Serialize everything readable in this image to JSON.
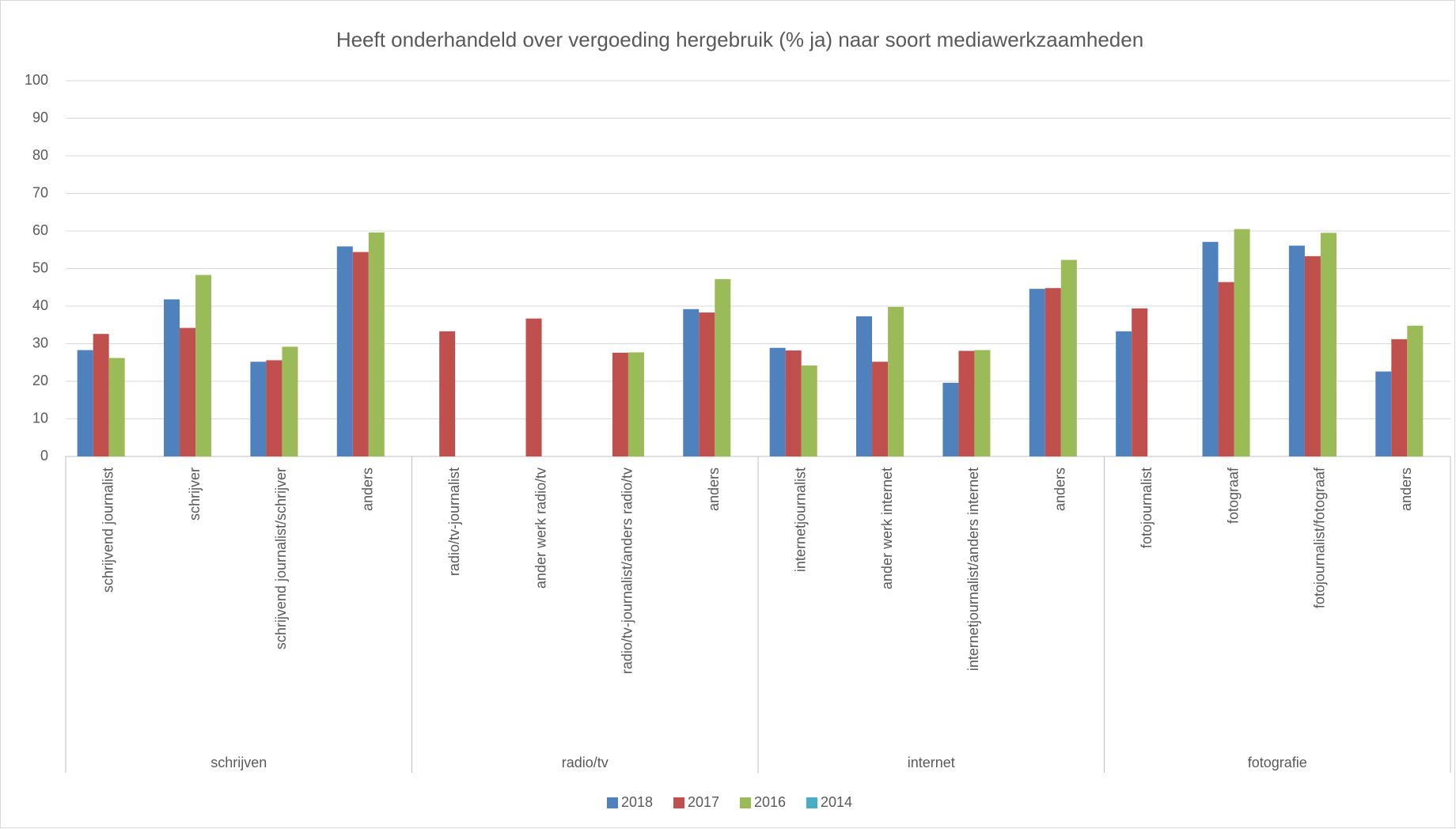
{
  "chart_data": {
    "type": "bar",
    "title": "Heeft onderhandeld over vergoeding hergebruik (% ja) naar soort mediawerkzaamheden",
    "categories": [
      "schrijvend journalist",
      "schrijver",
      "schrijvend journalist/schrijver",
      "anders",
      "radio/tv-journalist",
      "ander werk radio/tv",
      "radio/tv-journalist/anders radio/tv",
      "anders",
      "internetjournalist",
      "ander werk internet",
      "internetjournalist/anders internet",
      "anders",
      "fotojournalist",
      "fotograaf",
      "fotojournalist/fotograaf",
      "anders"
    ],
    "groups": [
      "schrijven",
      "radio/tv",
      "internet",
      "fotografie"
    ],
    "series": [
      {
        "name": "2018",
        "color": "#4f81bd",
        "values": [
          28.3,
          41.8,
          25.2,
          55.9,
          null,
          null,
          null,
          39.2,
          28.9,
          37.3,
          19.6,
          44.6,
          33.3,
          57.1,
          56.1,
          22.6
        ]
      },
      {
        "name": "2017",
        "color": "#c0504d",
        "values": [
          32.6,
          34.2,
          25.6,
          54.4,
          33.3,
          36.7,
          27.6,
          38.3,
          28.2,
          25.2,
          28.1,
          44.8,
          39.4,
          46.4,
          53.3,
          31.2
        ]
      },
      {
        "name": "2016",
        "color": "#9bbb59",
        "values": [
          26.2,
          48.3,
          29.2,
          59.6,
          null,
          null,
          27.7,
          47.2,
          24.2,
          39.8,
          28.3,
          52.3,
          null,
          60.5,
          59.5,
          34.8
        ]
      },
      {
        "name": "2014",
        "color": "#4bacc6",
        "values": [
          null,
          null,
          null,
          null,
          null,
          null,
          null,
          null,
          null,
          null,
          null,
          null,
          null,
          null,
          null,
          null
        ]
      }
    ],
    "ylim": [
      0,
      100
    ],
    "yticks": [
      0,
      10,
      20,
      30,
      40,
      50,
      60,
      70,
      80,
      90,
      100
    ],
    "grid": true,
    "legend": "bottom"
  }
}
